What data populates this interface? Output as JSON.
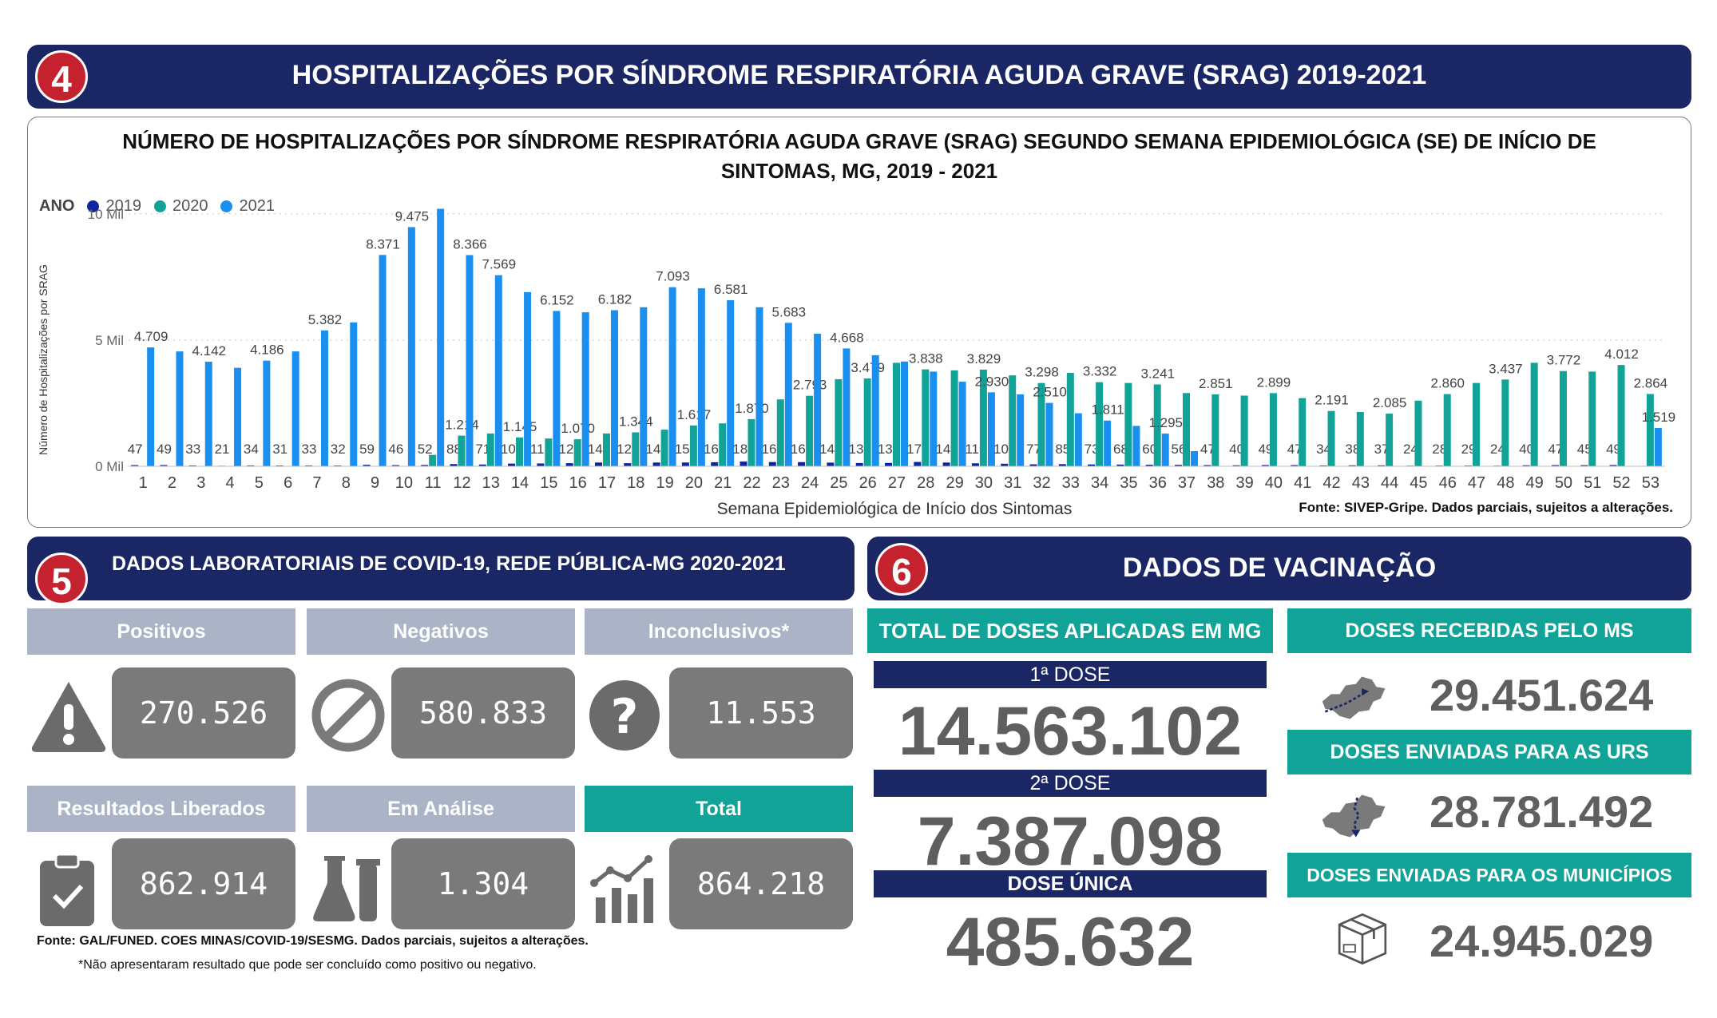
{
  "section4": {
    "badge": "4",
    "title": "HOSPITALIZAÇÕES POR SÍNDROME RESPIRATÓRIA AGUDA GRAVE (SRAG) 2019-2021"
  },
  "chart": {
    "title_line1": "NÚMERO DE HOSPITALIZAÇÕES POR SÍNDROME RESPIRATÓRIA AGUDA GRAVE (SRAG) SEGUNDO SEMANA EPIDEMIOLÓGICA (SE) DE INÍCIO DE",
    "title_line2": "SINTOMAS, MG, 2019 - 2021",
    "legend_label": "ANO",
    "legend": [
      "2019",
      "2020",
      "2021"
    ],
    "source": "Fonte: SIVEP-Gripe. Dados parciais, sujeitos a alterações."
  },
  "chart_data": {
    "type": "bar",
    "title": "NÚMERO DE HOSPITALIZAÇÕES POR SÍNDROME RESPIRATÓRIA AGUDA GRAVE (SRAG) SEGUNDO SEMANA EPIDEMIOLÓGICA (SE) DE INÍCIO DE SINTOMAS, MG, 2019 - 2021",
    "xlabel": "Semana Epidemiológica de Início dos Sintomas",
    "ylabel": "Número de Hospitalizações por SRAG",
    "ylim": [
      0,
      10500
    ],
    "yticks": [
      0,
      5000,
      10000
    ],
    "ytick_labels": [
      "0 Mil",
      "5 Mil",
      "10 Mil"
    ],
    "grid": true,
    "legend_position": "top-left",
    "colors": {
      "2019": "#12239e",
      "2020": "#11a397",
      "2021": "#1a8ff0"
    },
    "categories": [
      "1",
      "2",
      "3",
      "4",
      "5",
      "6",
      "7",
      "8",
      "9",
      "10",
      "11",
      "12",
      "13",
      "14",
      "15",
      "16",
      "17",
      "18",
      "19",
      "20",
      "21",
      "22",
      "23",
      "24",
      "25",
      "26",
      "27",
      "28",
      "29",
      "30",
      "31",
      "32",
      "33",
      "34",
      "35",
      "36",
      "37",
      "38",
      "39",
      "40",
      "41",
      "42",
      "43",
      "44",
      "45",
      "46",
      "47",
      "48",
      "49",
      "50",
      "51",
      "52",
      "53"
    ],
    "series": [
      {
        "name": "2019",
        "values": [
          47,
          49,
          33,
          21,
          34,
          31,
          33,
          32,
          59,
          46,
          52,
          88,
          71,
          106,
          112,
          123,
          149,
          123,
          149,
          151,
          160,
          188,
          168,
          166,
          145,
          130,
          133,
          172,
          148,
          119,
          101,
          77,
          85,
          73,
          68,
          60,
          56,
          47,
          40,
          49,
          47,
          34,
          38,
          37,
          24,
          28,
          29,
          24,
          40,
          47,
          45,
          49,
          null
        ]
      },
      {
        "name": "2020",
        "values": [
          null,
          null,
          null,
          null,
          null,
          null,
          null,
          null,
          null,
          null,
          450,
          1214,
          1300,
          1145,
          1100,
          1070,
          1300,
          1344,
          1450,
          1617,
          1700,
          1870,
          2650,
          2793,
          3450,
          3479,
          4100,
          3838,
          3800,
          3829,
          3600,
          3298,
          3700,
          3332,
          3300,
          3241,
          2900,
          2851,
          2800,
          2899,
          2700,
          2191,
          2150,
          2085,
          2600,
          2860,
          3300,
          3437,
          4100,
          3772,
          3750,
          4012,
          2864
        ]
      },
      {
        "name": "2021",
        "values": [
          4709,
          4550,
          4142,
          3900,
          4186,
          4550,
          5382,
          5700,
          8371,
          9475,
          10200,
          8366,
          7569,
          6900,
          6152,
          6100,
          6182,
          6300,
          7093,
          7050,
          6581,
          6300,
          5683,
          5250,
          4668,
          4400,
          4150,
          3750,
          3350,
          2930,
          2850,
          2510,
          2100,
          1811,
          1600,
          1295,
          600,
          null,
          null,
          null,
          null,
          null,
          null,
          null,
          null,
          null,
          null,
          null,
          null,
          null,
          null,
          null,
          1519
        ]
      }
    ],
    "data_labels": {
      "2019": [
        "47",
        "49",
        "33",
        "21",
        "34",
        "31",
        "33",
        "32",
        "59",
        "46",
        "52",
        "88",
        "71",
        "106",
        "112",
        "123",
        "149",
        "123",
        "149",
        "151",
        "160",
        "188",
        "168",
        "166",
        "145",
        "130",
        "133",
        "172",
        "148",
        "119",
        "101",
        "77",
        "85",
        "73",
        "68",
        "60",
        "56",
        "47",
        "40",
        "49",
        "47",
        "34",
        "38",
        "37",
        "24",
        "28",
        "29",
        "24",
        "40",
        "47",
        "45",
        "49",
        ""
      ],
      "2020": [
        "",
        "",
        "",
        "",
        "",
        "",
        "",
        "",
        "",
        "",
        "",
        "1.214",
        "",
        "1.145",
        "",
        "1.070",
        "",
        "1.344",
        "",
        "1.617",
        "",
        "1.870",
        "",
        "2.793",
        "",
        "3.479",
        "",
        "3.838",
        "",
        "3.829",
        "",
        "3.298",
        "",
        "3.332",
        "",
        "3.241",
        "",
        "2.851",
        "",
        "2.899",
        "",
        "2.191",
        "",
        "2.085",
        "",
        "2.860",
        "",
        "3.437",
        "",
        "3.772",
        "",
        "4.012",
        "2.864"
      ],
      "2021": [
        "4.709",
        "",
        "4.142",
        "",
        "4.186",
        "",
        "5.382",
        "",
        "8.371",
        "9.475",
        "",
        "8.366",
        "7.569",
        "",
        "6.152",
        "",
        "6.182",
        "",
        "7.093",
        "",
        "6.581",
        "",
        "5.683",
        "",
        "4.668",
        "",
        "",
        "",
        "",
        "2.930",
        "",
        "2.510",
        "",
        "1.811",
        "",
        "1.295",
        "",
        "",
        "",
        "",
        "",
        "",
        "",
        "",
        "",
        "",
        "",
        "",
        "",
        "",
        "",
        "",
        "1.519"
      ]
    }
  },
  "section5": {
    "badge": "5",
    "title": "DADOS LABORATORIAIS DE COVID-19, REDE PÚBLICA-MG 2020-2021"
  },
  "lab": {
    "positivos": {
      "label": "Positivos",
      "value": "270.526",
      "icon": "warning-icon"
    },
    "negativos": {
      "label": "Negativos",
      "value": "580.833",
      "icon": "prohibited-icon"
    },
    "inconclusivos": {
      "label": "Inconclusivos*",
      "value": "11.553",
      "icon": "question-icon"
    },
    "liberados": {
      "label": "Resultados Liberados",
      "value": "862.914",
      "icon": "clipboard-check-icon"
    },
    "analise": {
      "label": "Em Análise",
      "value": "1.304",
      "icon": "lab-flask-icon"
    },
    "total": {
      "label": "Total",
      "value": "864.218",
      "icon": "growth-chart-icon"
    },
    "source": "Fonte: GAL/FUNED. COES MINAS/COVID-19/SESMG. Dados parciais, sujeitos a alterações.",
    "footnote": "*Não apresentaram resultado que pode ser concluído como positivo ou negativo."
  },
  "section6": {
    "badge": "6",
    "title": "DADOS DE VACINAÇÃO"
  },
  "vacina": {
    "total_header": "TOTAL DE DOSES APLICADAS EM MG",
    "dose1_label": "1ª DOSE",
    "dose1_value": "14.563.102",
    "dose2_label": "2ª DOSE",
    "dose2_value": "7.387.098",
    "unica_label": "DOSE ÚNICA",
    "unica_value": "485.632",
    "recebidas_header": "DOSES RECEBIDAS PELO MS",
    "recebidas_value": "29.451.624",
    "urs_header": "DOSES ENVIADAS PARA AS URS",
    "urs_value": "28.781.492",
    "municipios_header": "DOSES ENVIADAS PARA OS MUNICÍPIOS",
    "municipios_value": "24.945.029"
  }
}
